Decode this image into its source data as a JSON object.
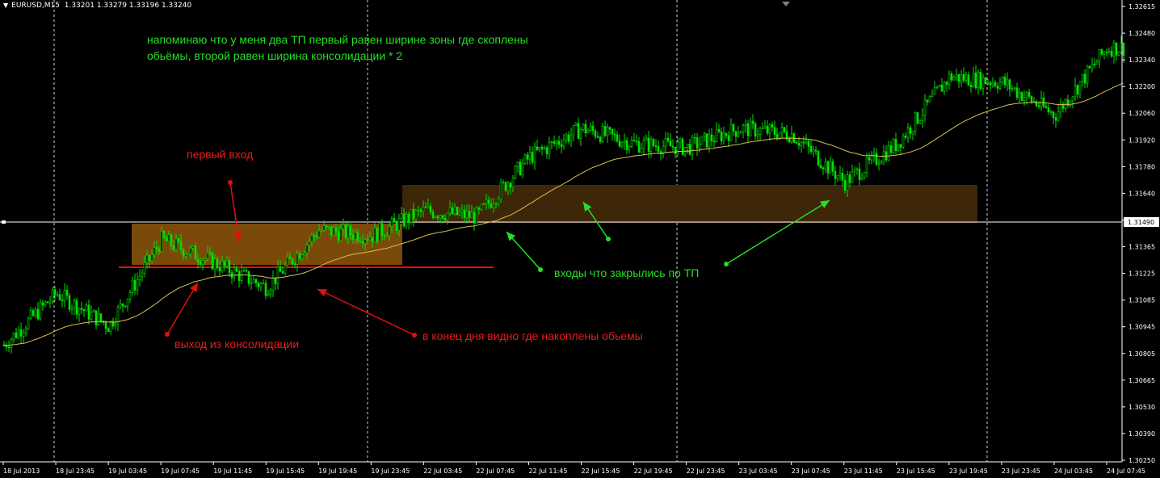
{
  "header": {
    "symbol": "EURUSD,M15",
    "ohlc": "1.33201 1.33279 1.33196 1.33240"
  },
  "price_axis": {
    "labels": [
      "1.32615",
      "1.32480",
      "1.32340",
      "1.32200",
      "1.32060",
      "1.31920",
      "1.31780",
      "1.31640",
      "1.31490",
      "1.31365",
      "1.31225",
      "1.31085",
      "1.30945",
      "1.30805",
      "1.30665",
      "1.30530",
      "1.30390",
      "1.30250"
    ],
    "current_price": "1.31490"
  },
  "time_axis": {
    "labels": [
      "18 Jul 2013",
      "18 Jul 23:45",
      "19 Jul 03:45",
      "19 Jul 07:45",
      "19 Jul 11:45",
      "19 Jul 15:45",
      "19 Jul 19:45",
      "19 Jul 23:45",
      "22 Jul 03:45",
      "22 Jul 07:45",
      "22 Jul 11:45",
      "22 Jul 15:45",
      "22 Jul 19:45",
      "22 Jul 23:45",
      "23 Jul 03:45",
      "23 Jul 07:45",
      "23 Jul 11:45",
      "23 Jul 15:45",
      "23 Jul 19:45",
      "23 Jul 23:45",
      "24 Jul 03:45",
      "24 Jul 07:45"
    ]
  },
  "annotations": {
    "reminder_line1": "напоминаю что у меня два ТП первый равен ширине зоны где скоплены",
    "reminder_line2": "обьёмы, второй равен ширина консолидации * 2",
    "first_entry": "первый вход",
    "breakout": "выход из консолидации",
    "volumes_note": "в конец дня видно где накоплены обьемы",
    "closed_tp": "входы что закрылись по ТП"
  },
  "colors": {
    "background": "#000000",
    "candles": "#00e000",
    "moving_average": "#d8c050",
    "zone_fill": "#7a4a0a",
    "green_text": "#22e022",
    "red_text": "#f01818",
    "grid": "#ffffff"
  },
  "chart_data": {
    "type": "candlestick",
    "instrument": "EURUSD,M15",
    "y_range": [
      1.3025,
      1.32615
    ],
    "close_path": [
      [
        "18 Jul 2013",
        1.3085
      ],
      [
        "18 Jul 23:45",
        1.3112
      ],
      [
        "19 Jul 03:45",
        1.3095
      ],
      [
        "19 Jul 07:45",
        1.314
      ],
      [
        "19 Jul 11:45",
        1.3128
      ],
      [
        "19 Jul 15:45",
        1.3115
      ],
      [
        "19 Jul 19:45",
        1.3145
      ],
      [
        "19 Jul 23:45",
        1.3142
      ],
      [
        "22 Jul 03:45",
        1.3155
      ],
      [
        "22 Jul 07:45",
        1.3152
      ],
      [
        "22 Jul 11:45",
        1.3183
      ],
      [
        "22 Jul 15:45",
        1.3198
      ],
      [
        "22 Jul 19:45",
        1.319
      ],
      [
        "22 Jul 23:45",
        1.3188
      ],
      [
        "23 Jul 03:45",
        1.3198
      ],
      [
        "23 Jul 07:45",
        1.3195
      ],
      [
        "23 Jul 11:45",
        1.317
      ],
      [
        "23 Jul 15:45",
        1.319
      ],
      [
        "23 Jul 19:45",
        1.3225
      ],
      [
        "23 Jul 23:45",
        1.3222
      ],
      [
        "24 Jul 03:45",
        1.3205
      ],
      [
        "24 Jul 07:45",
        1.324
      ]
    ]
  }
}
